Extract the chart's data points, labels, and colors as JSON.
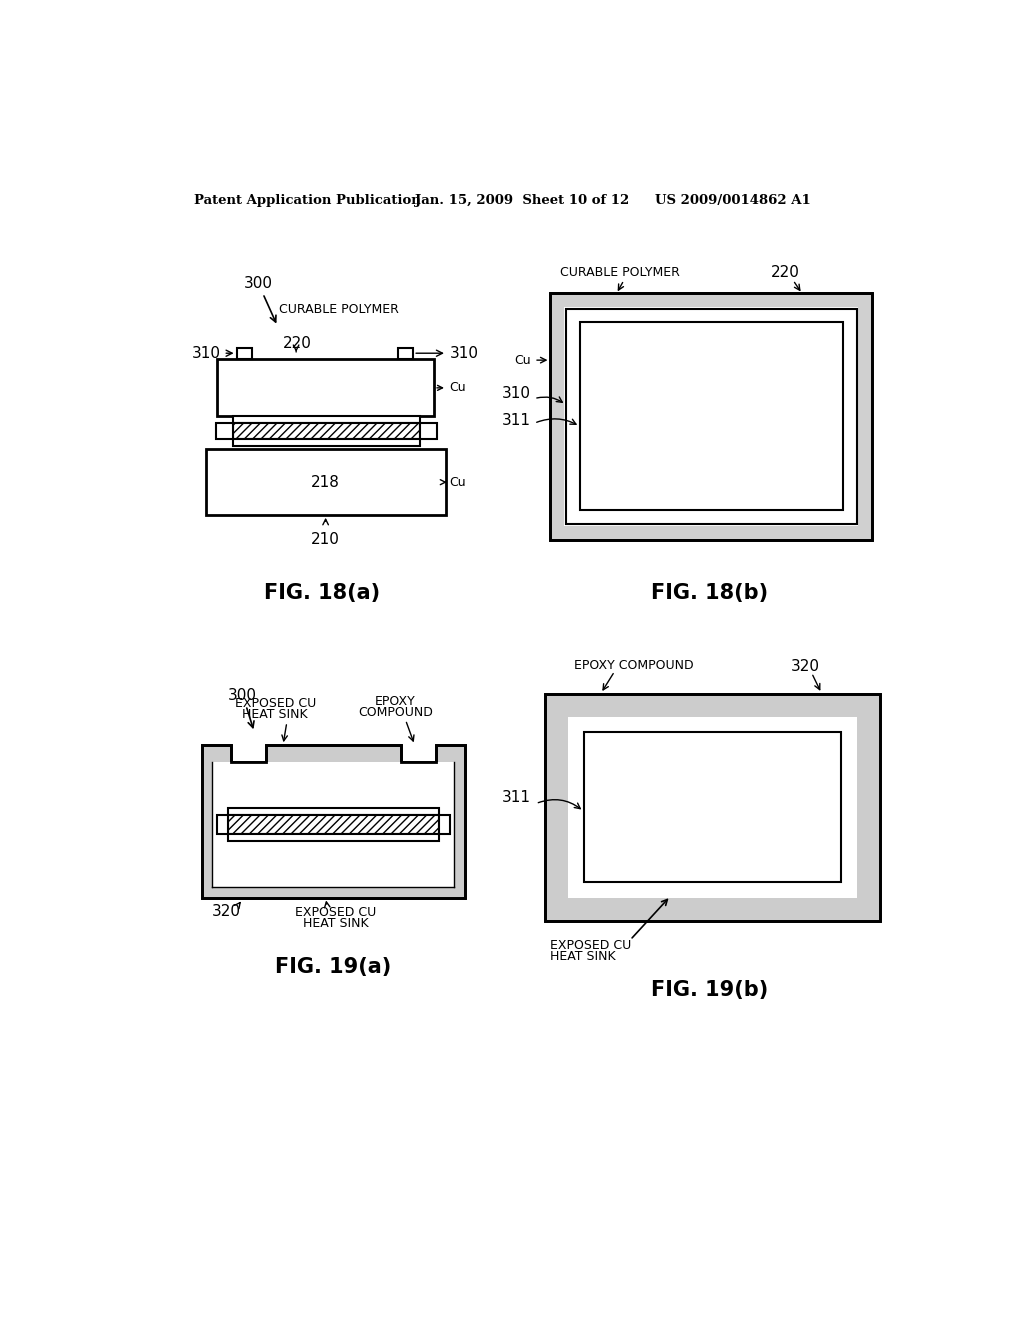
{
  "bg_color": "#ffffff",
  "header_left": "Patent Application Publication",
  "header_mid": "Jan. 15, 2009  Sheet 10 of 12",
  "header_right": "US 2009/0014862 A1"
}
